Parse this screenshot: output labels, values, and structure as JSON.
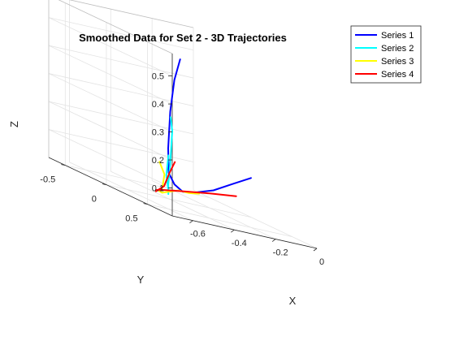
{
  "chart_data": {
    "type": "line",
    "title": "Smoothed Data for Set 2 - 3D Trajectories",
    "xlabel": "X",
    "ylabel": "Y",
    "zlabel": "Z",
    "x_ticks": [
      "-0.6",
      "-0.4",
      "-0.2",
      "0"
    ],
    "y_ticks": [
      "0.5",
      "0",
      "-0.5"
    ],
    "z_ticks": [
      "0.1",
      "0.2",
      "0.3",
      "0.4",
      "0.5"
    ],
    "grid": true,
    "legend_position": "top-right",
    "series": [
      {
        "name": "Series 1",
        "color": "#0000ff",
        "x": [
          0.0,
          -0.07,
          -0.15,
          -0.25,
          -0.35,
          -0.45,
          -0.55,
          -0.62,
          -0.65,
          -0.65,
          -0.63
        ],
        "y": [
          0.0,
          -0.05,
          -0.08,
          -0.05,
          0.05,
          0.2,
          0.38,
          0.55,
          0.65,
          0.7,
          0.72
        ],
        "z": [
          0.14,
          0.1,
          0.06,
          0.04,
          0.04,
          0.07,
          0.12,
          0.22,
          0.36,
          0.48,
          0.56
        ]
      },
      {
        "name": "Series 2",
        "color": "#00ffff",
        "x": [
          -0.32,
          -0.35,
          -0.38,
          -0.42,
          -0.48,
          -0.56,
          -0.63,
          -0.68,
          -0.7
        ],
        "y": [
          -0.2,
          -0.15,
          -0.05,
          0.05,
          0.2,
          0.4,
          0.6,
          0.75,
          0.78
        ],
        "z": [
          0.14,
          0.07,
          0.03,
          0.02,
          0.04,
          0.08,
          0.17,
          0.3,
          0.35
        ]
      },
      {
        "name": "Series 3",
        "color": "#ffff00",
        "x": [
          -0.02,
          -0.1,
          -0.2,
          -0.32,
          -0.45,
          -0.55,
          -0.62,
          -0.67,
          -0.69
        ],
        "y": [
          -0.58,
          -0.5,
          -0.38,
          -0.2,
          0.05,
          0.25,
          0.48,
          0.63,
          0.62
        ],
        "z": [
          0.0,
          0.0,
          0.01,
          0.01,
          0.02,
          0.04,
          0.07,
          0.13,
          0.17
        ]
      },
      {
        "name": "Series 4",
        "color": "#ff0000",
        "x": [
          0.0,
          -0.08,
          -0.18,
          -0.3,
          -0.4,
          -0.48,
          -0.52,
          -0.52,
          -0.5
        ],
        "y": [
          -0.18,
          -0.3,
          -0.38,
          -0.35,
          -0.15,
          0.05,
          0.25,
          0.32,
          0.33
        ],
        "z": [
          0.05,
          0.03,
          0.01,
          0.0,
          0.01,
          0.02,
          0.06,
          0.12,
          0.16
        ]
      }
    ]
  }
}
